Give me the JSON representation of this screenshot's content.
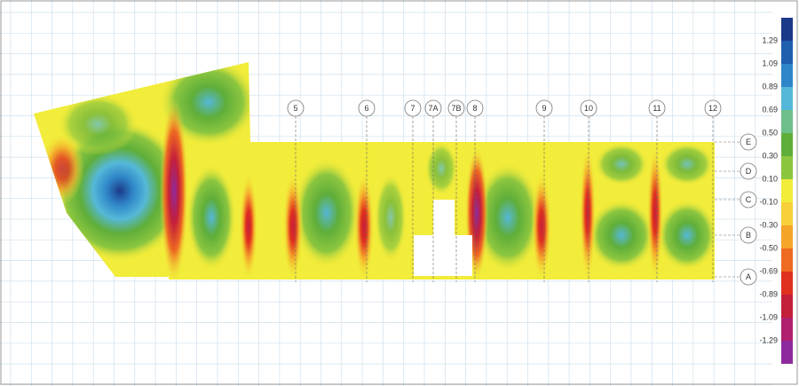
{
  "grid_columns": [
    "5",
    "6",
    "7",
    "7A",
    "7B",
    "8",
    "9",
    "10",
    "11",
    "12"
  ],
  "grid_rows": [
    "E",
    "D",
    "C",
    "B",
    "A"
  ],
  "legend": {
    "labels": [
      "1.29",
      "1.09",
      "0.89",
      "0.69",
      "0.50",
      "0.30",
      "0.10",
      "-0.10",
      "-0.30",
      "-0.50",
      "-0.69",
      "-0.89",
      "-1.09",
      "-1.29"
    ],
    "colors": [
      "#1c3a8a",
      "#1f5fae",
      "#2f86c8",
      "#55b8d8",
      "#6fbf8a",
      "#5fae3a",
      "#8cc63f",
      "#f2ec3a",
      "#f7d03a",
      "#f4a52a",
      "#ee6b22",
      "#e0301e",
      "#c41f3a",
      "#b0206e",
      "#8e2a9e"
    ]
  }
}
